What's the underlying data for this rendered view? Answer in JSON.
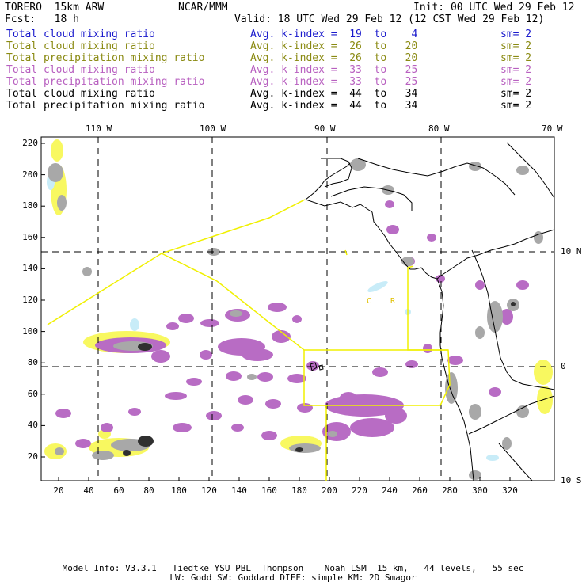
{
  "header": {
    "model": "TORERO  15km ARW",
    "center": "NCAR/MMM",
    "init": "Init: 00 UTC Wed 29 Feb 12",
    "fcst": "Fcst:   18 h",
    "valid": "Valid: 18 UTC Wed 29 Feb 12 (12 CST Wed 29 Feb 12)"
  },
  "legend": [
    {
      "field": "Total cloud mixing ratio",
      "index": "Avg. k-index =  19  to    4",
      "sm": "sm= 2",
      "color": "#1a1acc"
    },
    {
      "field": "Total cloud mixing ratio",
      "index": "Avg. k-index =  26  to   20",
      "sm": "sm= 2",
      "color": "#8a8a12"
    },
    {
      "field": "Total precipitation mixing ratio",
      "index": "Avg. k-index =  26  to   20",
      "sm": "sm= 2",
      "color": "#8a8a12"
    },
    {
      "field": "Total cloud mixing ratio",
      "index": "Avg. k-index =  33  to   25",
      "sm": "sm= 2",
      "color": "#b860c0"
    },
    {
      "field": "Total precipitation mixing ratio",
      "index": "Avg. k-index =  33  to   25",
      "sm": "sm= 2",
      "color": "#b860c0"
    },
    {
      "field": "Total cloud mixing ratio",
      "index": "Avg. k-index =  44  to   34",
      "sm": "sm= 2",
      "color": "#000000"
    },
    {
      "field": "Total precipitation mixing ratio",
      "index": "Avg. k-index =  44  to   34",
      "sm": "sm= 2",
      "color": "#000000"
    }
  ],
  "map": {
    "lon_labels": [
      "110 W",
      "100 W",
      "90 W",
      "80 W",
      "70 W"
    ],
    "lat_labels": [
      "10 N",
      "0",
      "10 S"
    ],
    "y_ticks": [
      "220",
      "200",
      "180",
      "160",
      "140",
      "120",
      "100",
      "80",
      "60",
      "40",
      "20"
    ],
    "x_ticks": [
      "20",
      "40",
      "60",
      "80",
      "100",
      "120",
      "140",
      "160",
      "180",
      "200",
      "220",
      "240",
      "260",
      "280",
      "300",
      "320"
    ],
    "colors": {
      "ocean": "#ffffff",
      "coast": "#000000",
      "boundary": "#f0f000",
      "gray": "#a8a8a8",
      "purple": "#b86cc4",
      "yellow": "#f8f860",
      "cyan": "#c8ecf8"
    },
    "field_labels": [
      "C",
      "R"
    ]
  },
  "footer": {
    "line1": "Model Info: V3.3.1   Tiedtke YSU PBL  Thompson    Noah LSM  15 km,   44 levels,   55 sec",
    "line2": "LW: Godd SW: Goddard DIFF: simple KM: 2D Smagor"
  }
}
